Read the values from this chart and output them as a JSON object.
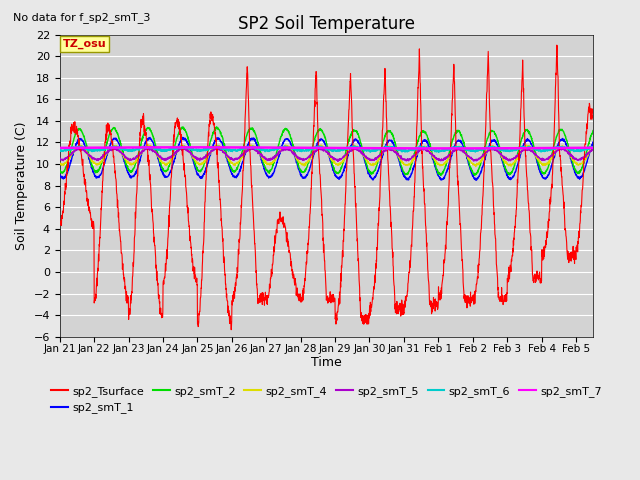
{
  "title": "SP2 Soil Temperature",
  "note": "No data for f_sp2_smT_3",
  "tz_label": "TZ_osu",
  "ylabel": "Soil Temperature (C)",
  "xlabel": "Time",
  "ylim": [
    -6,
    22
  ],
  "yticks": [
    -6,
    -4,
    -2,
    0,
    2,
    4,
    6,
    8,
    10,
    12,
    14,
    16,
    18,
    20,
    22
  ],
  "fig_facecolor": "#e8e8e8",
  "ax_facecolor": "#d3d3d3",
  "series_colors": {
    "sp2_Tsurface": "#ff0000",
    "sp2_smT_1": "#0000ff",
    "sp2_smT_2": "#00dd00",
    "sp2_smT_4": "#dddd00",
    "sp2_smT_5": "#aa00cc",
    "sp2_smT_6": "#00cccc",
    "sp2_smT_7": "#ff00ff"
  },
  "legend_entries": [
    {
      "label": "sp2_Tsurface",
      "color": "#ff0000"
    },
    {
      "label": "sp2_smT_1",
      "color": "#0000ff"
    },
    {
      "label": "sp2_smT_2",
      "color": "#00dd00"
    },
    {
      "label": "sp2_smT_4",
      "color": "#dddd00"
    },
    {
      "label": "sp2_smT_5",
      "color": "#aa00cc"
    },
    {
      "label": "sp2_smT_6",
      "color": "#00cccc"
    },
    {
      "label": "sp2_smT_7",
      "color": "#ff00ff"
    }
  ],
  "xtick_labels": [
    "Jan 21",
    "Jan 22",
    "Jan 23",
    "Jan 24",
    "Jan 25",
    "Jan 26",
    "Jan 27",
    "Jan 28",
    "Jan 29",
    "Jan 30",
    "Jan 31",
    "Feb 1",
    "Feb 2",
    "Feb 3",
    "Feb 4",
    "Feb 5"
  ]
}
